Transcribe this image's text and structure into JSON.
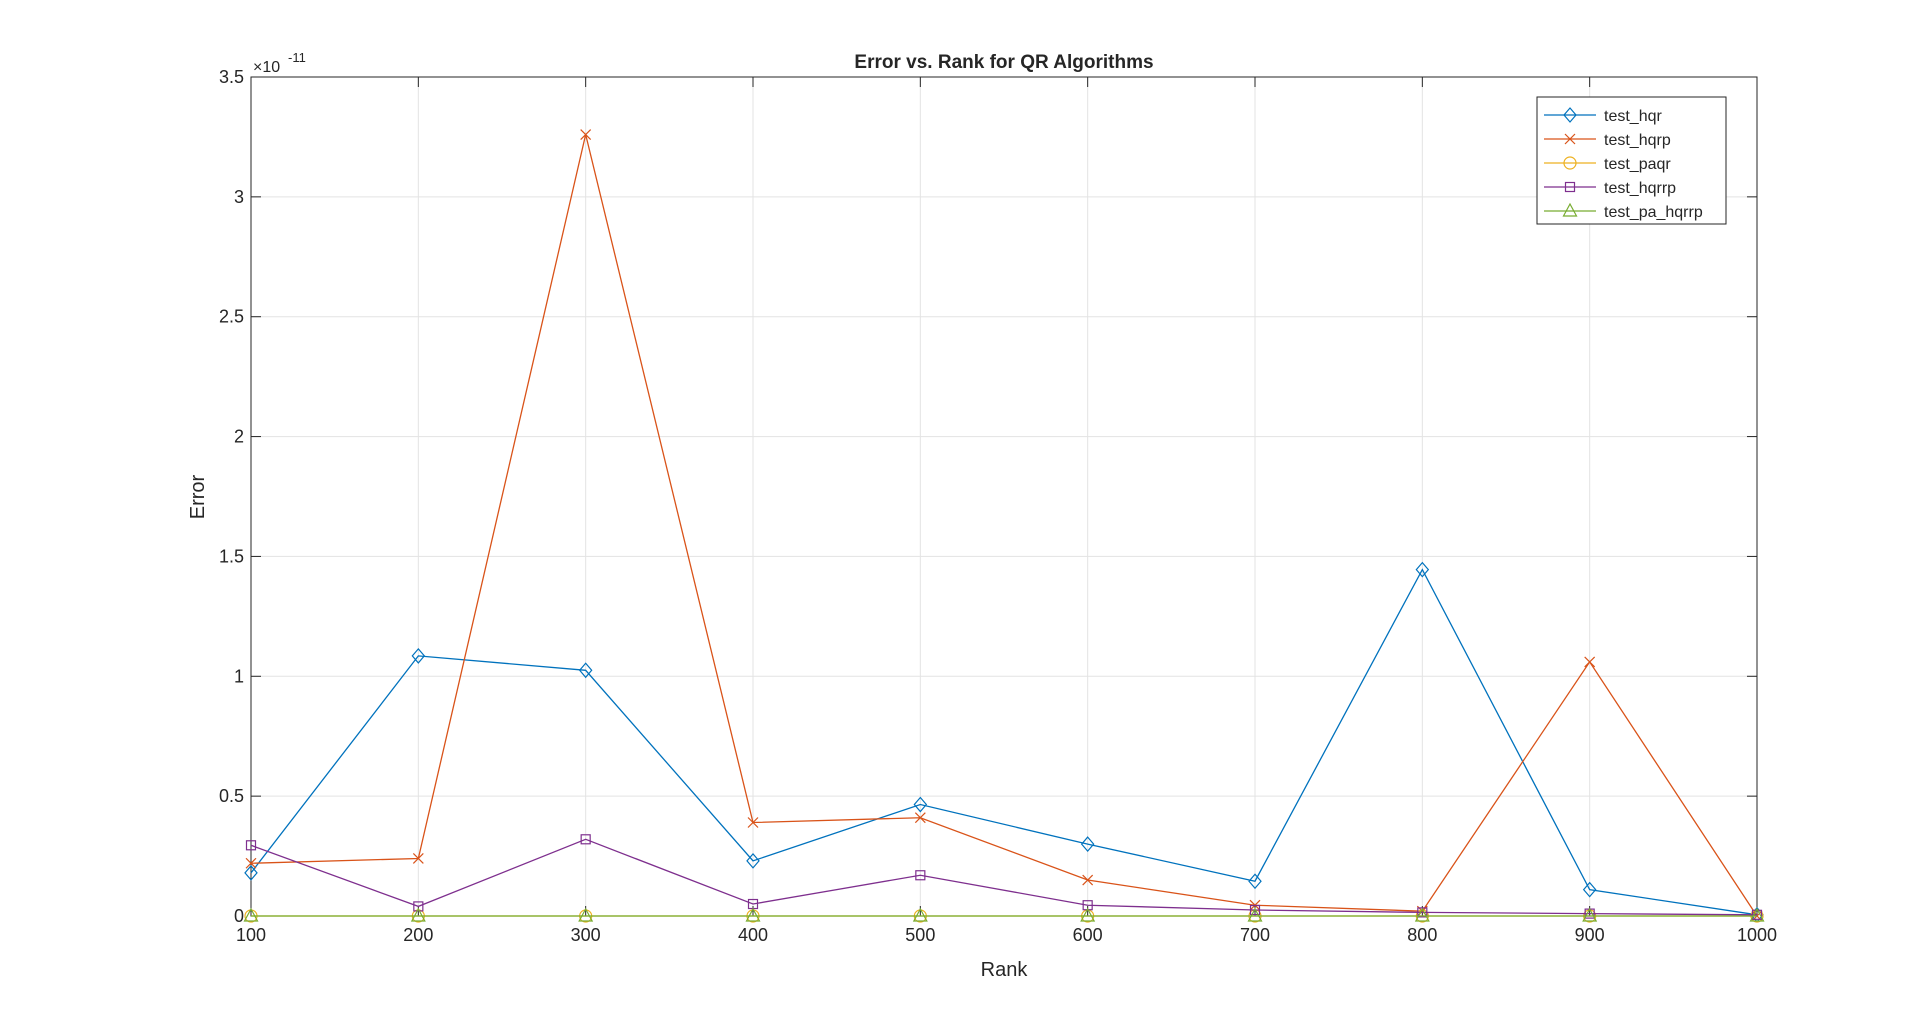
{
  "chart_data": {
    "type": "line",
    "title": "Error vs. Rank for QR Algorithms",
    "xlabel": "Rank",
    "ylabel": "Error",
    "exponent_base": "×10",
    "exponent_power": "-11",
    "xlim": [
      100,
      1000
    ],
    "ylim": [
      0,
      3.5
    ],
    "grid": true,
    "legend_position": "top-right",
    "x": [
      100,
      200,
      300,
      400,
      500,
      600,
      700,
      800,
      900,
      1000
    ],
    "xticks": [
      "100",
      "200",
      "300",
      "400",
      "500",
      "600",
      "700",
      "800",
      "900",
      "1000"
    ],
    "yticks": [
      "0",
      "0.5",
      "1",
      "1.5",
      "2",
      "2.5",
      "3",
      "3.5"
    ],
    "series": [
      {
        "name": "test_hqr",
        "color": "#0072BD",
        "marker": "diamond",
        "values": [
          0.18,
          1.085,
          1.025,
          0.23,
          0.465,
          0.3,
          0.145,
          1.445,
          0.11,
          0.005
        ]
      },
      {
        "name": "test_hqrp",
        "color": "#D95319",
        "marker": "x",
        "values": [
          0.22,
          0.24,
          3.26,
          0.39,
          0.41,
          0.15,
          0.045,
          0.02,
          1.06,
          0.0
        ]
      },
      {
        "name": "test_paqr",
        "color": "#EDB120",
        "marker": "circle",
        "values": [
          0.0,
          0.0,
          0.0,
          0.0,
          0.0,
          0.0,
          0.0,
          0.0,
          0.0,
          0.0
        ]
      },
      {
        "name": "test_hqrrp",
        "color": "#7E2F8E",
        "marker": "square",
        "values": [
          0.295,
          0.04,
          0.32,
          0.05,
          0.17,
          0.045,
          0.025,
          0.015,
          0.01,
          0.005
        ]
      },
      {
        "name": "test_pa_hqrrp",
        "color": "#77AC30",
        "marker": "triangle",
        "values": [
          0.0,
          0.0,
          0.0,
          0.0,
          0.0,
          0.0,
          0.0,
          0.0,
          0.0,
          0.0
        ]
      }
    ]
  }
}
